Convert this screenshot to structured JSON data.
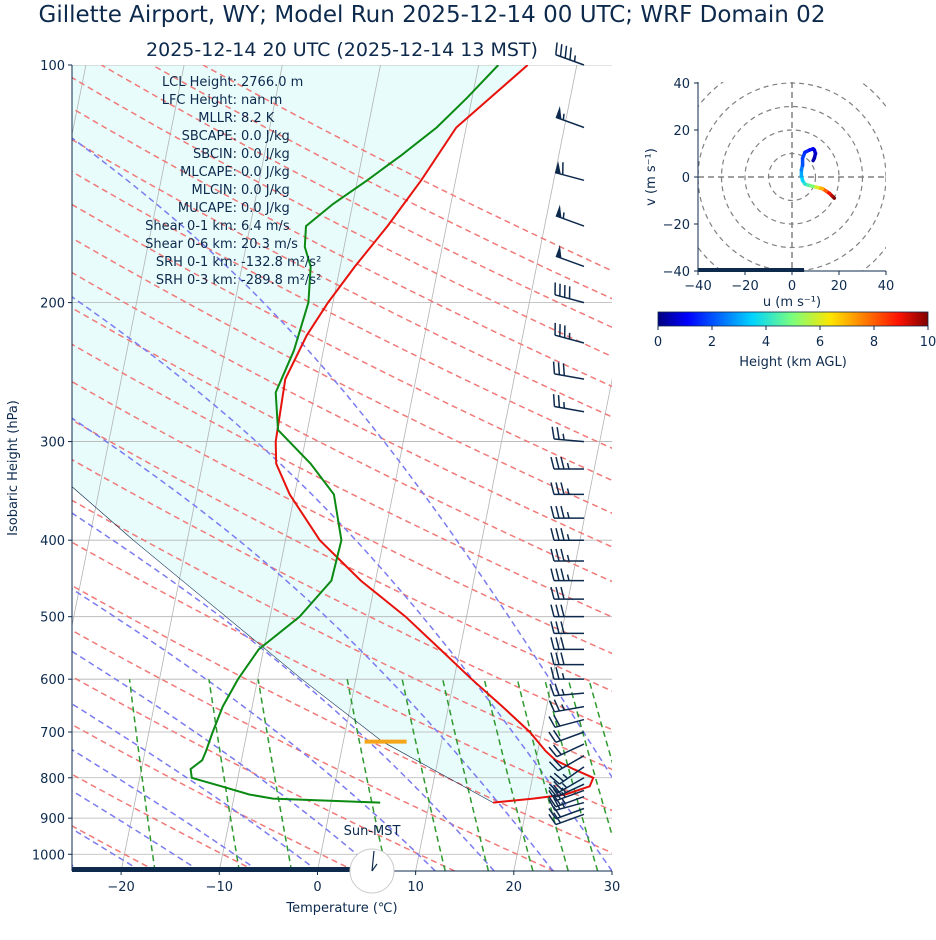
{
  "title": "Gillette  Airport, WY; Model Run 2025-12-14 00 UTC; WRF Domain 02",
  "subtitle": "2025-12-14 20 UTC  (2025-12-14 13 MST)",
  "skewt": {
    "xlabel": "Temperature (℃)",
    "ylabel": "Isobaric Height (hPa)",
    "xlim": [
      -25,
      30
    ],
    "ylim": [
      1050,
      100
    ],
    "x_ticks": [
      "−20",
      "−10",
      "0",
      "10",
      "20",
      "30"
    ],
    "y_ticks": [
      "100",
      "200",
      "300",
      "400",
      "500",
      "600",
      "700",
      "800",
      "900",
      "1000"
    ]
  },
  "indices": [
    "LCL Height: 2766.0 m",
    "LFC Height: nan m",
    "MLLR: 8.2 K",
    "SBCAPE: 0.0 J/kg",
    "SBCIN: 0.0 J/kg",
    "MLCAPE: 0.0 J/kg",
    "MLCIN: 0.0 J/kg",
    "MUCAPE: 0.0 J/kg",
    "Shear 0-1 km: 6.4 m/s",
    "Shear 0-6 km: 20.3 m/s",
    "SRH 0-1 km: -132.8 m²/s²",
    "SRH 0-3 km: -289.8 m²/s²"
  ],
  "sun_label": "Sun-MST",
  "hodograph": {
    "xlabel": "u (m s⁻¹)",
    "ylabel": "v (m s⁻¹)",
    "lim": [
      -40,
      40
    ],
    "ticks": [
      "−40",
      "−20",
      "0",
      "20",
      "40"
    ],
    "y_ticks": [
      "40",
      "20",
      "0",
      "−20",
      "−40"
    ]
  },
  "colorbar": {
    "label": "Height (km AGL)",
    "ticks": [
      "0",
      "2",
      "4",
      "6",
      "8",
      "10"
    ]
  },
  "colors": {
    "temperature": "#e8120c",
    "dewpoint": "#0a8a12",
    "parcel": "#0d2a4d",
    "dry_adiabat": "#f07a78",
    "moist_adiabat": "#7b7bf0",
    "mixing_ratio": "#2e9a2e",
    "cape_fill": "#e8fcfc",
    "lcl_marker": "#f5a51a"
  },
  "chart_data": {
    "type": "line",
    "temperature_profile": {
      "pressure_hpa": [
        860,
        850,
        840,
        820,
        800,
        780,
        760,
        740,
        700,
        650,
        600,
        550,
        500,
        450,
        400,
        350,
        320,
        300,
        250,
        220,
        200,
        180,
        160,
        140,
        120,
        100
      ],
      "temp_c": [
        16.5,
        20.5,
        23.7,
        26.0,
        26.2,
        24.0,
        22.0,
        20.8,
        18.8,
        15.5,
        11.8,
        8.0,
        3.8,
        -1.5,
        -6.5,
        -10.5,
        -12.5,
        -13.0,
        -13.3,
        -12.0,
        -10.5,
        -8.5,
        -6.0,
        -3.5,
        -1.0,
        5.0
      ]
    },
    "dewpoint_profile": {
      "pressure_hpa": [
        860,
        850,
        840,
        820,
        800,
        780,
        760,
        740,
        700,
        650,
        600,
        550,
        500,
        450,
        400,
        350,
        320,
        290,
        260,
        230,
        200,
        180,
        170,
        160,
        150,
        140,
        130,
        120,
        110,
        100
      ],
      "dewpt_c": [
        5.0,
        -6.0,
        -8.5,
        -11.5,
        -14.7,
        -15.0,
        -14.0,
        -13.8,
        -13.5,
        -13.0,
        -12.0,
        -10.5,
        -7.0,
        -4.5,
        -4.3,
        -6.0,
        -9.0,
        -13.0,
        -14.0,
        -13.0,
        -12.5,
        -13.0,
        -14.0,
        -14.3,
        -12.0,
        -9.0,
        -6.0,
        -3.0,
        -0.5,
        2.0
      ]
    },
    "parcel_profile": {
      "pressure_hpa": [
        860,
        720,
        600,
        500,
        400,
        300,
        200,
        150,
        100
      ],
      "temp_c": [
        16.5,
        4.0,
        -5.5,
        -14.5,
        -25.5,
        -39.0,
        -58.0,
        -70.0,
        -88.0
      ]
    },
    "lcl_pressure_hpa": 720,
    "wind_barbs": [
      {
        "p": 100,
        "kt": 45,
        "dir": 290
      },
      {
        "p": 120,
        "kt": 55,
        "dir": 290
      },
      {
        "p": 140,
        "kt": 60,
        "dir": 285
      },
      {
        "p": 160,
        "kt": 55,
        "dir": 290
      },
      {
        "p": 180,
        "kt": 50,
        "dir": 290
      },
      {
        "p": 200,
        "kt": 40,
        "dir": 285
      },
      {
        "p": 225,
        "kt": 35,
        "dir": 285
      },
      {
        "p": 250,
        "kt": 30,
        "dir": 280
      },
      {
        "p": 275,
        "kt": 25,
        "dir": 280
      },
      {
        "p": 300,
        "kt": 25,
        "dir": 275
      },
      {
        "p": 325,
        "kt": 35,
        "dir": 270
      },
      {
        "p": 350,
        "kt": 35,
        "dir": 270
      },
      {
        "p": 375,
        "kt": 35,
        "dir": 270
      },
      {
        "p": 400,
        "kt": 35,
        "dir": 270
      },
      {
        "p": 425,
        "kt": 35,
        "dir": 270
      },
      {
        "p": 450,
        "kt": 35,
        "dir": 270
      },
      {
        "p": 475,
        "kt": 30,
        "dir": 270
      },
      {
        "p": 500,
        "kt": 30,
        "dir": 270
      },
      {
        "p": 525,
        "kt": 30,
        "dir": 270
      },
      {
        "p": 550,
        "kt": 30,
        "dir": 270
      },
      {
        "p": 575,
        "kt": 30,
        "dir": 270
      },
      {
        "p": 600,
        "kt": 25,
        "dir": 270
      },
      {
        "p": 625,
        "kt": 25,
        "dir": 265
      },
      {
        "p": 650,
        "kt": 25,
        "dir": 260
      },
      {
        "p": 675,
        "kt": 20,
        "dir": 255
      },
      {
        "p": 700,
        "kt": 20,
        "dir": 250
      },
      {
        "p": 725,
        "kt": 20,
        "dir": 245
      },
      {
        "p": 750,
        "kt": 20,
        "dir": 240
      },
      {
        "p": 775,
        "kt": 25,
        "dir": 235
      },
      {
        "p": 800,
        "kt": 25,
        "dir": 240
      },
      {
        "p": 815,
        "kt": 25,
        "dir": 245
      },
      {
        "p": 830,
        "kt": 25,
        "dir": 250
      },
      {
        "p": 845,
        "kt": 25,
        "dir": 250
      },
      {
        "p": 860,
        "kt": 25,
        "dir": 255
      },
      {
        "p": 875,
        "kt": 20,
        "dir": 250
      },
      {
        "p": 890,
        "kt": 20,
        "dir": 250
      }
    ],
    "hodograph_points": {
      "u": [
        18.0,
        17.0,
        16.0,
        14.5,
        13.0,
        11.0,
        9.0,
        7.0,
        5.5,
        4.5,
        4.0,
        4.0,
        4.5,
        4.5,
        5.5,
        7.5,
        9.0,
        9.5,
        10.0,
        9.5,
        9.0
      ],
      "v": [
        -9.0,
        -8.0,
        -7.0,
        -6.0,
        -5.0,
        -4.5,
        -4.0,
        -3.5,
        -3.0,
        -1.5,
        0.5,
        3.0,
        5.0,
        8.0,
        10.5,
        11.5,
        12.0,
        11.5,
        10.0,
        8.0,
        7.0
      ],
      "height_km": [
        0.2,
        0.5,
        0.8,
        1.2,
        1.5,
        1.8,
        2.0,
        2.2,
        2.4,
        2.6,
        2.8,
        3.0,
        3.2,
        3.4,
        3.6,
        3.8,
        4.0,
        4.3,
        4.6,
        5.0,
        5.5
      ]
    }
  }
}
